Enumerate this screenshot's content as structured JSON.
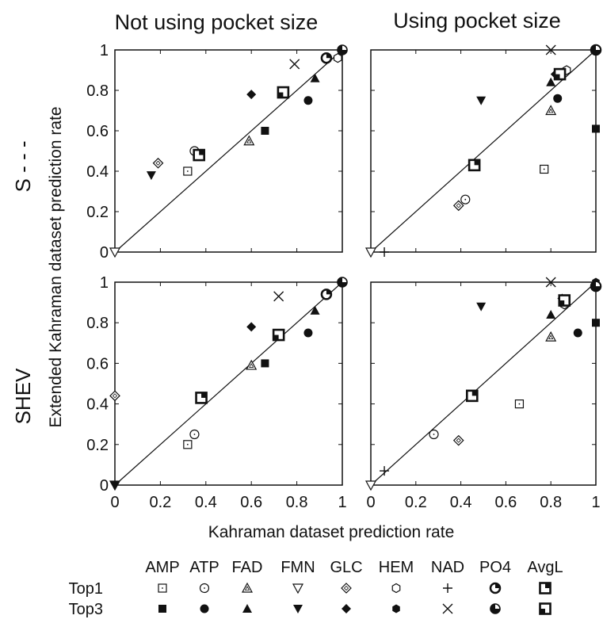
{
  "chart_data": {
    "type": "scatter",
    "xlabel": "Kahraman dataset prediction rate",
    "ylabel": "Extended Kahraman dataset prediction rate",
    "column_titles": [
      "Not using pocket size",
      "Using pocket size"
    ],
    "row_titles": [
      "S - - -",
      "SHEV"
    ],
    "x_ticks": [
      "0",
      "0.2",
      "0.4",
      "0.6",
      "0.8",
      "1"
    ],
    "y_ticks": [
      "0",
      "0.2",
      "0.4",
      "0.6",
      "0.8",
      "1"
    ],
    "xlim": [
      0,
      1
    ],
    "ylim": [
      0,
      1
    ],
    "diagonal": true,
    "legend": {
      "columns": [
        "AMP",
        "ATP",
        "FAD",
        "FMN",
        "GLC",
        "HEM",
        "NAD",
        "PO4",
        "AvgL"
      ],
      "rows": [
        "Top1",
        "Top3"
      ]
    },
    "panels": [
      {
        "row": "S - - -",
        "column": "Not using pocket size",
        "points": [
          {
            "ligand": "AMP",
            "top": "Top1",
            "x": 0.32,
            "y": 0.4
          },
          {
            "ligand": "ATP",
            "top": "Top1",
            "x": 0.35,
            "y": 0.5
          },
          {
            "ligand": "FAD",
            "top": "Top1",
            "x": 0.59,
            "y": 0.55
          },
          {
            "ligand": "FMN",
            "top": "Top1",
            "x": 0.0,
            "y": 0.0
          },
          {
            "ligand": "GLC",
            "top": "Top1",
            "x": 0.19,
            "y": 0.44
          },
          {
            "ligand": "HEM",
            "top": "Top1",
            "x": 0.98,
            "y": 0.96
          },
          {
            "ligand": "NAD",
            "top": "Top1",
            "x": 1.0,
            "y": 1.0
          },
          {
            "ligand": "PO4",
            "top": "Top1",
            "x": 0.93,
            "y": 0.96
          },
          {
            "ligand": "AvgL",
            "top": "Top1",
            "x": 0.37,
            "y": 0.48
          },
          {
            "ligand": "AMP",
            "top": "Top3",
            "x": 0.66,
            "y": 0.6
          },
          {
            "ligand": "ATP",
            "top": "Top3",
            "x": 0.85,
            "y": 0.75
          },
          {
            "ligand": "FAD",
            "top": "Top3",
            "x": 0.88,
            "y": 0.86
          },
          {
            "ligand": "FMN",
            "top": "Top3",
            "x": 0.16,
            "y": 0.38
          },
          {
            "ligand": "GLC",
            "top": "Top3",
            "x": 0.6,
            "y": 0.78
          },
          {
            "ligand": "HEM",
            "top": "Top3",
            "x": 1.0,
            "y": 1.0
          },
          {
            "ligand": "NAD",
            "top": "Top3",
            "x": 0.79,
            "y": 0.93
          },
          {
            "ligand": "PO4",
            "top": "Top3",
            "x": 1.0,
            "y": 1.0
          },
          {
            "ligand": "AvgL",
            "top": "Top3",
            "x": 0.74,
            "y": 0.79
          }
        ]
      },
      {
        "row": "S - - -",
        "column": "Using pocket size",
        "points": [
          {
            "ligand": "AMP",
            "top": "Top1",
            "x": 0.77,
            "y": 0.41
          },
          {
            "ligand": "ATP",
            "top": "Top1",
            "x": 0.42,
            "y": 0.26
          },
          {
            "ligand": "FAD",
            "top": "Top1",
            "x": 0.8,
            "y": 0.7
          },
          {
            "ligand": "FMN",
            "top": "Top1",
            "x": 0.0,
            "y": 0.0
          },
          {
            "ligand": "GLC",
            "top": "Top1",
            "x": 0.39,
            "y": 0.23
          },
          {
            "ligand": "HEM",
            "top": "Top1",
            "x": 0.87,
            "y": 0.9
          },
          {
            "ligand": "NAD",
            "top": "Top1",
            "x": 0.06,
            "y": 0.0
          },
          {
            "ligand": "PO4",
            "top": "Top1",
            "x": 1.0,
            "y": 1.0
          },
          {
            "ligand": "AvgL",
            "top": "Top1",
            "x": 0.46,
            "y": 0.43
          },
          {
            "ligand": "AMP",
            "top": "Top3",
            "x": 1.0,
            "y": 0.61
          },
          {
            "ligand": "ATP",
            "top": "Top3",
            "x": 0.83,
            "y": 0.76
          },
          {
            "ligand": "FAD",
            "top": "Top3",
            "x": 0.8,
            "y": 0.84
          },
          {
            "ligand": "FMN",
            "top": "Top3",
            "x": 0.49,
            "y": 0.75
          },
          {
            "ligand": "GLC",
            "top": "Top3",
            "x": 0.82,
            "y": 0.88
          },
          {
            "ligand": "HEM",
            "top": "Top3",
            "x": 1.0,
            "y": 1.0
          },
          {
            "ligand": "NAD",
            "top": "Top3",
            "x": 0.8,
            "y": 1.0
          },
          {
            "ligand": "PO4",
            "top": "Top3",
            "x": 1.0,
            "y": 1.0
          },
          {
            "ligand": "AvgL",
            "top": "Top3",
            "x": 0.84,
            "y": 0.88
          }
        ]
      },
      {
        "row": "SHEV",
        "column": "Not using pocket size",
        "points": [
          {
            "ligand": "AMP",
            "top": "Top1",
            "x": 0.32,
            "y": 0.2
          },
          {
            "ligand": "ATP",
            "top": "Top1",
            "x": 0.35,
            "y": 0.25
          },
          {
            "ligand": "FAD",
            "top": "Top1",
            "x": 0.6,
            "y": 0.59
          },
          {
            "ligand": "FMN",
            "top": "Top1",
            "x": 0.0,
            "y": 0.0
          },
          {
            "ligand": "GLC",
            "top": "Top1",
            "x": 0.0,
            "y": 0.44
          },
          {
            "ligand": "HEM",
            "top": "Top1",
            "x": 0.93,
            "y": 0.94
          },
          {
            "ligand": "NAD",
            "top": "Top1",
            "x": 1.0,
            "y": 1.0
          },
          {
            "ligand": "PO4",
            "top": "Top1",
            "x": 0.93,
            "y": 0.94
          },
          {
            "ligand": "AvgL",
            "top": "Top1",
            "x": 0.38,
            "y": 0.43
          },
          {
            "ligand": "AMP",
            "top": "Top3",
            "x": 0.66,
            "y": 0.6
          },
          {
            "ligand": "ATP",
            "top": "Top3",
            "x": 0.85,
            "y": 0.75
          },
          {
            "ligand": "FAD",
            "top": "Top3",
            "x": 0.88,
            "y": 0.86
          },
          {
            "ligand": "FMN",
            "top": "Top3",
            "x": 0.0,
            "y": 0.0
          },
          {
            "ligand": "GLC",
            "top": "Top3",
            "x": 0.6,
            "y": 0.78
          },
          {
            "ligand": "HEM",
            "top": "Top3",
            "x": 1.0,
            "y": 1.0
          },
          {
            "ligand": "NAD",
            "top": "Top3",
            "x": 0.72,
            "y": 0.93
          },
          {
            "ligand": "PO4",
            "top": "Top3",
            "x": 1.0,
            "y": 1.0
          },
          {
            "ligand": "AvgL",
            "top": "Top3",
            "x": 0.72,
            "y": 0.74
          }
        ]
      },
      {
        "row": "SHEV",
        "column": "Using pocket size",
        "points": [
          {
            "ligand": "AMP",
            "top": "Top1",
            "x": 0.66,
            "y": 0.4
          },
          {
            "ligand": "ATP",
            "top": "Top1",
            "x": 0.28,
            "y": 0.25
          },
          {
            "ligand": "FAD",
            "top": "Top1",
            "x": 0.8,
            "y": 0.73
          },
          {
            "ligand": "FMN",
            "top": "Top1",
            "x": 0.0,
            "y": 0.0
          },
          {
            "ligand": "GLC",
            "top": "Top1",
            "x": 0.39,
            "y": 0.22
          },
          {
            "ligand": "HEM",
            "top": "Top1",
            "x": 0.86,
            "y": 0.89
          },
          {
            "ligand": "NAD",
            "top": "Top1",
            "x": 0.06,
            "y": 0.07
          },
          {
            "ligand": "PO4",
            "top": "Top1",
            "x": 1.0,
            "y": 0.98
          },
          {
            "ligand": "AvgL",
            "top": "Top1",
            "x": 0.45,
            "y": 0.44
          },
          {
            "ligand": "AMP",
            "top": "Top3",
            "x": 1.0,
            "y": 0.8
          },
          {
            "ligand": "ATP",
            "top": "Top3",
            "x": 0.92,
            "y": 0.75
          },
          {
            "ligand": "FAD",
            "top": "Top3",
            "x": 0.8,
            "y": 0.84
          },
          {
            "ligand": "FMN",
            "top": "Top3",
            "x": 0.49,
            "y": 0.88
          },
          {
            "ligand": "GLC",
            "top": "Top3",
            "x": 0.85,
            "y": 0.92
          },
          {
            "ligand": "HEM",
            "top": "Top3",
            "x": 1.0,
            "y": 1.0
          },
          {
            "ligand": "NAD",
            "top": "Top3",
            "x": 0.8,
            "y": 1.0
          },
          {
            "ligand": "PO4",
            "top": "Top3",
            "x": 1.0,
            "y": 0.98
          },
          {
            "ligand": "AvgL",
            "top": "Top3",
            "x": 0.86,
            "y": 0.91
          }
        ]
      }
    ]
  }
}
